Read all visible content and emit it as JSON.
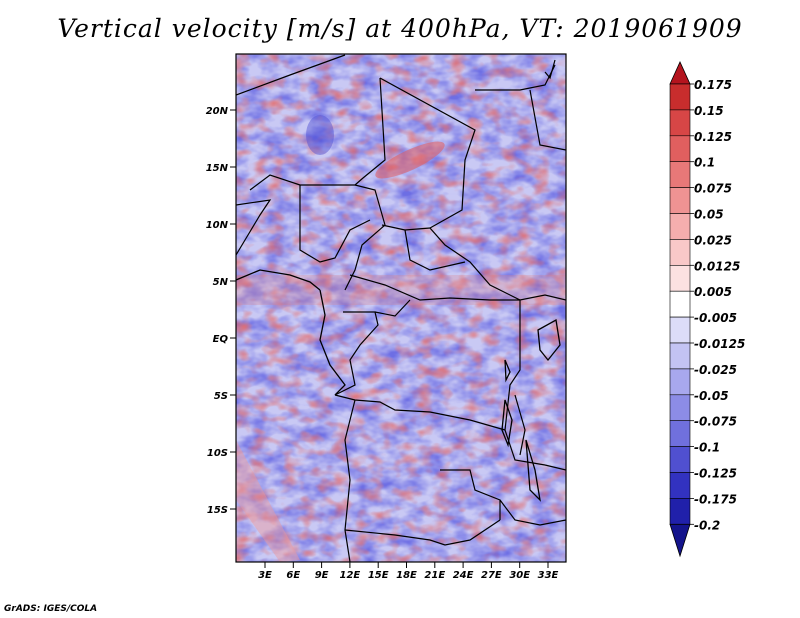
{
  "title": "Vertical velocity [m/s] at 400hPa, VT: 2019061909",
  "credit": "GrADS: IGES/COLA",
  "map": {
    "lat_ticks": [
      "20N",
      "15N",
      "10N",
      "5N",
      "EQ",
      "5S",
      "10S",
      "15S"
    ],
    "lon_ticks": [
      "3E",
      "6E",
      "9E",
      "12E",
      "15E",
      "18E",
      "21E",
      "24E",
      "27E",
      "30E",
      "33E"
    ],
    "lon_range": [
      0,
      35
    ],
    "lat_range": [
      -20,
      24
    ]
  },
  "colorbar": {
    "labels": [
      "0.175",
      "0.15",
      "0.125",
      "0.1",
      "0.075",
      "0.05",
      "0.025",
      "0.0125",
      "0.005",
      "-0.005",
      "-0.0125",
      "-0.025",
      "-0.05",
      "-0.075",
      "-0.1",
      "-0.125",
      "-0.175",
      "-0.2"
    ],
    "colors": [
      "#b4141e",
      "#c82d2d",
      "#d74646",
      "#e05f5f",
      "#e87878",
      "#ef9393",
      "#f5aeae",
      "#f9c8c8",
      "#fce1e1",
      "#ffffff",
      "#dcdcf8",
      "#c3c3f3",
      "#a8a8ee",
      "#8c8ce6",
      "#7070dd",
      "#5050d0",
      "#3232c0",
      "#2020aa",
      "#14148c"
    ]
  }
}
